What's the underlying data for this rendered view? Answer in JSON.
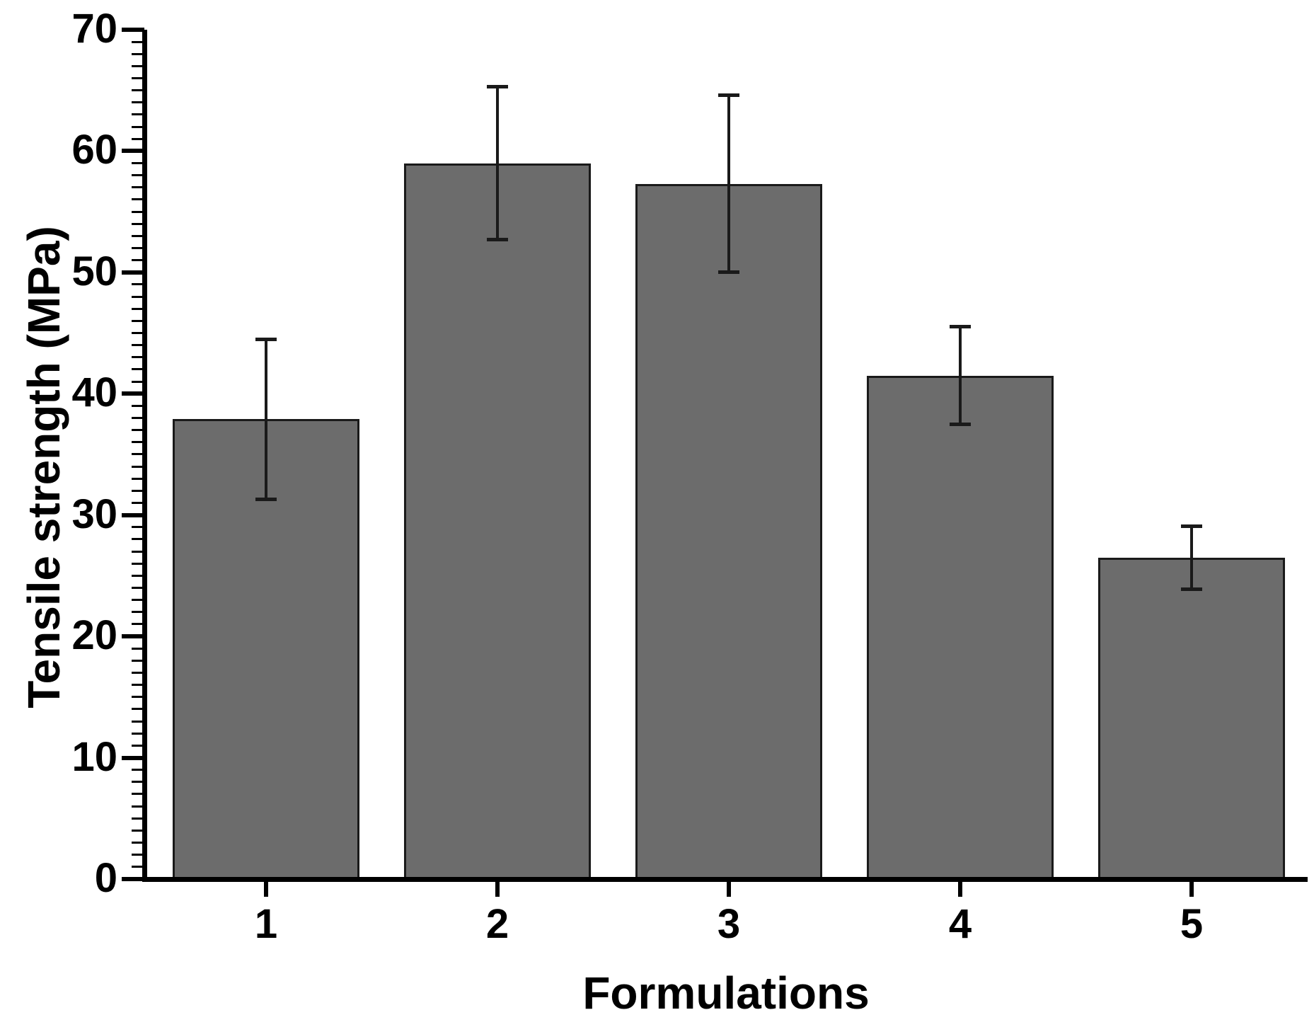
{
  "figure": {
    "background": "#ffffff"
  },
  "chart_data": {
    "type": "bar",
    "title": "",
    "xlabel": "Formulations",
    "ylabel": "Tensile strength (MPa)",
    "categories": [
      "1",
      "2",
      "3",
      "4",
      "5"
    ],
    "series": [
      {
        "name": "Tensile strength",
        "values": [
          37.9,
          59.0,
          57.3,
          41.5,
          26.5
        ],
        "error_bars": [
          6.6,
          6.3,
          7.3,
          4.0,
          2.6
        ]
      }
    ],
    "ylim": [
      0,
      70
    ],
    "y_major_tick_step": 10,
    "y_minor_tick_step": 1,
    "y_tick_labels": [
      "0",
      "10",
      "20",
      "30",
      "40",
      "50",
      "60",
      "70"
    ],
    "grid": "off",
    "legend": "none",
    "bar_fill_color": "#6c6c6c",
    "bar_border_color": "#1a1a1a",
    "error_bar_color": "#1a1a1a",
    "axis_color": "#000000",
    "text_color": "#000000"
  }
}
